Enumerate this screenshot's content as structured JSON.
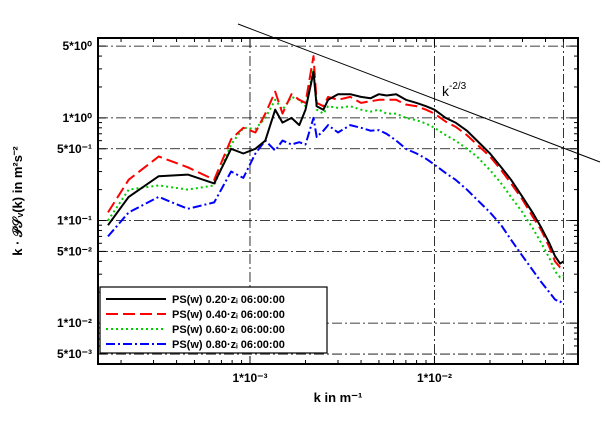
{
  "chart_data": {
    "type": "line",
    "xlabel": "k in m⁻¹",
    "ylabel": "k · 𝒫𝒮ᵥ(k) in m²s⁻²",
    "xscale": "log",
    "yscale": "log",
    "xlim": [
      0.00015,
      0.06
    ],
    "ylim": [
      0.004,
      6.0
    ],
    "x_major_ticks": [
      {
        "value": 0.001,
        "label": "1*10⁻³"
      },
      {
        "value": 0.01,
        "label": "1*10⁻²"
      }
    ],
    "y_major_ticks": [
      {
        "value": 5.0,
        "label": "5*10⁰"
      },
      {
        "value": 1.0,
        "label": "1*10⁰"
      },
      {
        "value": 0.5,
        "label": "5*10⁻¹"
      },
      {
        "value": 0.1,
        "label": "1*10⁻¹"
      },
      {
        "value": 0.05,
        "label": "5*10⁻²"
      },
      {
        "value": 0.01,
        "label": "1*10⁻²"
      },
      {
        "value": 0.005,
        "label": "5*10⁻³"
      }
    ],
    "grid": true,
    "legend_position": "bottom-left",
    "series": [
      {
        "name": "PS(w)   0.20 zᵢ  06:00:00",
        "color": "#000000",
        "dash": "solid",
        "x": [
          0.00017,
          0.00022,
          0.00032,
          0.00046,
          0.00064,
          0.00079,
          0.00092,
          0.00107,
          0.00121,
          0.00137,
          0.0015,
          0.00168,
          0.00185,
          0.002,
          0.00221,
          0.0023,
          0.0025,
          0.00265,
          0.003,
          0.0035,
          0.004,
          0.0045,
          0.005,
          0.0055,
          0.0062,
          0.007,
          0.008,
          0.009,
          0.01,
          0.0115,
          0.013,
          0.015,
          0.017,
          0.02,
          0.023,
          0.026,
          0.03,
          0.034,
          0.038,
          0.042,
          0.045,
          0.048,
          0.05
        ],
        "y": [
          0.09,
          0.17,
          0.27,
          0.28,
          0.23,
          0.5,
          0.45,
          0.5,
          0.6,
          1.2,
          0.9,
          1.0,
          0.85,
          1.2,
          2.8,
          1.3,
          1.2,
          1.5,
          1.7,
          1.7,
          1.6,
          1.55,
          1.7,
          1.65,
          1.7,
          1.5,
          1.4,
          1.3,
          1.2,
          1.0,
          0.9,
          0.75,
          0.6,
          0.45,
          0.33,
          0.25,
          0.17,
          0.12,
          0.085,
          0.06,
          0.045,
          0.038,
          0.04
        ]
      },
      {
        "name": "PS(w)   0.40 zᵢ  06:00:00",
        "color": "#ff0000",
        "dash": "long-dash",
        "x": [
          0.00017,
          0.00022,
          0.00032,
          0.00046,
          0.00064,
          0.00079,
          0.00092,
          0.00107,
          0.00121,
          0.00137,
          0.0015,
          0.00168,
          0.00185,
          0.002,
          0.00221,
          0.0023,
          0.0025,
          0.00265,
          0.003,
          0.0035,
          0.004,
          0.0045,
          0.005,
          0.0055,
          0.0062,
          0.007,
          0.008,
          0.009,
          0.01,
          0.0115,
          0.013,
          0.015,
          0.017,
          0.02,
          0.023,
          0.026,
          0.03,
          0.034,
          0.038,
          0.042,
          0.045,
          0.048,
          0.05
        ],
        "y": [
          0.12,
          0.25,
          0.42,
          0.33,
          0.25,
          0.62,
          0.8,
          0.72,
          1.1,
          1.8,
          1.1,
          1.7,
          1.5,
          1.4,
          4.0,
          1.4,
          1.3,
          1.6,
          1.5,
          1.6,
          1.4,
          1.45,
          1.5,
          1.5,
          1.5,
          1.35,
          1.3,
          1.2,
          1.1,
          0.92,
          0.82,
          0.68,
          0.55,
          0.42,
          0.31,
          0.23,
          0.16,
          0.11,
          0.08,
          0.055,
          0.04,
          0.035,
          0.036
        ]
      },
      {
        "name": "PS(w)   0.60 zᵢ  06:00:00",
        "color": "#00cc00",
        "dash": "dotted",
        "x": [
          0.00017,
          0.00022,
          0.00032,
          0.00046,
          0.00064,
          0.00079,
          0.00092,
          0.00107,
          0.00121,
          0.00137,
          0.0015,
          0.00168,
          0.00185,
          0.002,
          0.00221,
          0.0023,
          0.0025,
          0.00265,
          0.003,
          0.0035,
          0.004,
          0.0045,
          0.005,
          0.0055,
          0.0062,
          0.007,
          0.008,
          0.009,
          0.01,
          0.0115,
          0.013,
          0.015,
          0.017,
          0.02,
          0.023,
          0.026,
          0.03,
          0.034,
          0.038,
          0.042,
          0.045,
          0.048,
          0.05
        ],
        "y": [
          0.1,
          0.2,
          0.22,
          0.2,
          0.22,
          0.55,
          0.8,
          0.78,
          1.0,
          1.5,
          1.2,
          1.6,
          1.5,
          1.3,
          3.0,
          1.2,
          1.1,
          1.3,
          1.25,
          1.3,
          1.2,
          1.15,
          1.2,
          1.1,
          1.1,
          1.0,
          0.95,
          0.88,
          0.8,
          0.68,
          0.6,
          0.5,
          0.42,
          0.31,
          0.23,
          0.17,
          0.12,
          0.085,
          0.06,
          0.043,
          0.032,
          0.028,
          0.029
        ]
      },
      {
        "name": "PS(w)   0.80 zᵢ  06:00:00",
        "color": "#0000ff",
        "dash": "dash-dot",
        "x": [
          0.00017,
          0.00022,
          0.00032,
          0.00046,
          0.00064,
          0.00079,
          0.00092,
          0.00107,
          0.00121,
          0.00137,
          0.0015,
          0.00168,
          0.00185,
          0.002,
          0.00221,
          0.0023,
          0.0025,
          0.00265,
          0.003,
          0.0035,
          0.004,
          0.0045,
          0.005,
          0.0055,
          0.0062,
          0.007,
          0.008,
          0.009,
          0.01,
          0.0115,
          0.013,
          0.015,
          0.017,
          0.02,
          0.023,
          0.026,
          0.03,
          0.034,
          0.038,
          0.042,
          0.045,
          0.048,
          0.05
        ],
        "y": [
          0.07,
          0.12,
          0.17,
          0.13,
          0.15,
          0.3,
          0.26,
          0.45,
          0.6,
          0.48,
          0.6,
          0.55,
          0.58,
          0.55,
          1.0,
          0.65,
          0.75,
          0.85,
          0.72,
          0.85,
          0.8,
          0.75,
          0.76,
          0.7,
          0.6,
          0.5,
          0.45,
          0.4,
          0.35,
          0.29,
          0.25,
          0.2,
          0.16,
          0.12,
          0.09,
          0.065,
          0.045,
          0.033,
          0.025,
          0.02,
          0.017,
          0.016,
          0.017
        ]
      }
    ],
    "reference_line": {
      "label": "k⁻²ᐟ³",
      "slope": "-2/3",
      "x": [
        0.00066,
        0.06
      ],
      "y": [
        8.0,
        0.38
      ]
    }
  },
  "legend": {
    "entries": [
      {
        "text": "PS(w)   0.20·zᵢ  06:00:00"
      },
      {
        "text": "PS(w)   0.40·zᵢ  06:00:00"
      },
      {
        "text": "PS(w)   0.60·zᵢ  06:00:00"
      },
      {
        "text": "PS(w)   0.80·zᵢ  06:00:00"
      }
    ]
  },
  "axes": {
    "x_title": "k in m⁻¹",
    "y_title": "k · 𝒫𝒮ᵥ(k) in m²s⁻²"
  }
}
